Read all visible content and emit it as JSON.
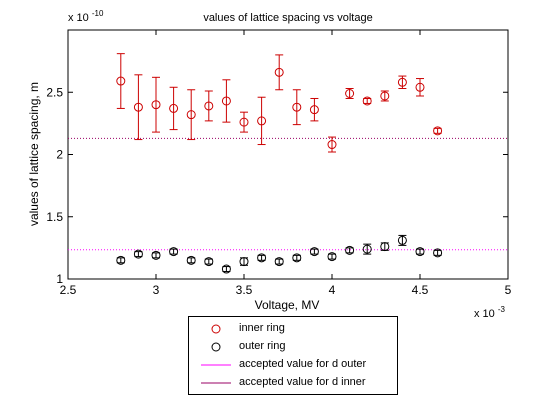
{
  "chart_data": {
    "type": "scatter",
    "title": "values of lattice spacing vs voltage",
    "xlabel": "Voltage, MV",
    "ylabel": "values of lattice spacing, m",
    "x_exponent_label": "x 10",
    "x_exponent_power": "-3",
    "y_exponent_label": "x 10",
    "y_exponent_power": "-10",
    "xlim": [
      2.5,
      5
    ],
    "ylim": [
      1,
      3
    ],
    "xticks": [
      2.5,
      3,
      3.5,
      4,
      4.5,
      5
    ],
    "xtick_labels": [
      "2.5",
      "3",
      "3.5",
      "4",
      "4.5",
      "5"
    ],
    "yticks": [
      1,
      1.5,
      2,
      2.5
    ],
    "ytick_labels": [
      "1",
      "1.5",
      "2",
      "2.5"
    ],
    "grid": false,
    "legend_position": "below",
    "series": [
      {
        "name": "inner ring",
        "color": "#cc0000",
        "marker": "circle",
        "x": [
          2.8,
          2.9,
          3.0,
          3.1,
          3.2,
          3.3,
          3.4,
          3.5,
          3.6,
          3.7,
          3.8,
          3.9,
          4.0,
          4.1,
          4.2,
          4.3,
          4.4,
          4.5,
          4.6
        ],
        "y": [
          2.59,
          2.38,
          2.4,
          2.37,
          2.32,
          2.39,
          2.43,
          2.26,
          2.27,
          2.66,
          2.38,
          2.36,
          2.08,
          2.49,
          2.43,
          2.47,
          2.58,
          2.54,
          2.19
        ],
        "err": [
          0.22,
          0.26,
          0.22,
          0.17,
          0.2,
          0.12,
          0.17,
          0.08,
          0.19,
          0.14,
          0.14,
          0.09,
          0.06,
          0.04,
          0.02,
          0.04,
          0.05,
          0.07,
          0.02
        ]
      },
      {
        "name": "outer ring",
        "color": "#000000",
        "marker": "circle",
        "x": [
          2.8,
          2.9,
          3.0,
          3.1,
          3.2,
          3.3,
          3.4,
          3.5,
          3.6,
          3.7,
          3.8,
          3.9,
          4.0,
          4.1,
          4.2,
          4.3,
          4.4,
          4.5,
          4.6
        ],
        "y": [
          1.15,
          1.2,
          1.19,
          1.22,
          1.15,
          1.14,
          1.08,
          1.14,
          1.17,
          1.14,
          1.17,
          1.22,
          1.18,
          1.23,
          1.24,
          1.26,
          1.31,
          1.22,
          1.21
        ],
        "err": [
          0.02,
          0.02,
          0.02,
          0.02,
          0.02,
          0.02,
          0.02,
          0.03,
          0.02,
          0.02,
          0.02,
          0.02,
          0.02,
          0.02,
          0.04,
          0.03,
          0.04,
          0.02,
          0.02
        ]
      },
      {
        "name": "accepted value for d outer",
        "color": "#ff00ff",
        "type": "hline",
        "y": 1.235
      },
      {
        "name": "accepted value for d inner",
        "color": "#990066",
        "type": "hline",
        "y": 2.13
      }
    ]
  }
}
